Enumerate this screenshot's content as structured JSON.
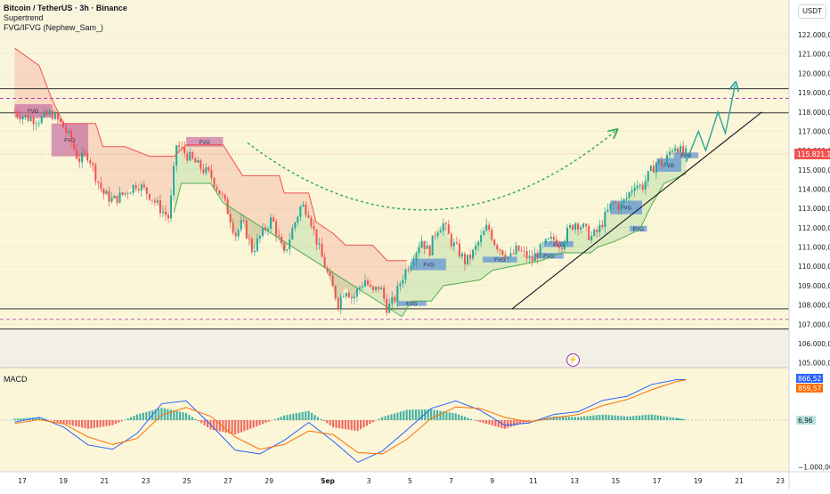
{
  "header": {
    "symbol": "Bitcoin / TetherUS · 3h · Binance",
    "indicator1": "Supertrend",
    "indicator2": "FVG/IFVG (Nephew_Sam_)",
    "currency": "USDT"
  },
  "colors": {
    "bg_yellow": "#fbf6d8",
    "up": "#26a69a",
    "down": "#ef5350",
    "fvg_blue": "#5b8fd9",
    "fvg_pink": "#c66fa3",
    "supertrend_up": "#4caf50",
    "supertrend_down": "#ef5350",
    "macd_line": "#2962ff",
    "signal_line": "#ff6d00",
    "arrow_green": "#26a69a",
    "dashed_curve": "#2ea84a"
  },
  "price_axis": {
    "ticks": [
      "122.000,00",
      "121.000,00",
      "120.000,00",
      "119.000,00",
      "118.000,00",
      "117.000,00",
      "116.000,00",
      "115.000,00",
      "114.000,00",
      "113.000,00",
      "112.000,00",
      "111.000,00",
      "110.000,00",
      "109.000,00",
      "108.000,00",
      "107.000,00",
      "106.000,00",
      "105.000,00"
    ],
    "current_price_label": "115.821,14",
    "current_price": 115821.14
  },
  "macd": {
    "label": "MACD",
    "macd_value": "866,52",
    "signal_value": "859,57",
    "hist_value": "6,96",
    "axis_low": "−1.000,00"
  },
  "time_axis": {
    "labels": [
      "17",
      "19",
      "21",
      "23",
      "25",
      "27",
      "29",
      "Sep",
      "3",
      "5",
      "7",
      "9",
      "11",
      "13",
      "15",
      "17",
      "19",
      "21",
      "23"
    ]
  },
  "chart_data": {
    "type": "candlestick",
    "title": "Bitcoin / TetherUS · 3h · Binance",
    "ylim": [
      104800,
      122600
    ],
    "levels": [
      {
        "price": 119200,
        "style": "solid"
      },
      {
        "price": 118700,
        "style": "dashed"
      },
      {
        "price": 117950,
        "style": "solid"
      },
      {
        "price": 107800,
        "style": "solid"
      },
      {
        "price": 107250,
        "style": "dashed"
      },
      {
        "price": 106750,
        "style": "solid"
      }
    ],
    "price_path": [
      [
        16.0,
        118000
      ],
      [
        16.5,
        117700
      ],
      [
        17.0,
        117600
      ],
      [
        17.5,
        117950
      ],
      [
        18.0,
        117200
      ],
      [
        18.3,
        116500
      ],
      [
        18.6,
        115500
      ],
      [
        19.0,
        115800
      ],
      [
        19.3,
        114700
      ],
      [
        19.6,
        113800
      ],
      [
        20.0,
        113400
      ],
      [
        20.5,
        113800
      ],
      [
        21.0,
        114300
      ],
      [
        21.5,
        113700
      ],
      [
        22.0,
        112900
      ],
      [
        22.3,
        112500
      ],
      [
        22.6,
        116300
      ],
      [
        23.0,
        115800
      ],
      [
        23.5,
        115200
      ],
      [
        24.0,
        114700
      ],
      [
        24.5,
        113500
      ],
      [
        24.8,
        112500
      ],
      [
        25.0,
        111600
      ],
      [
        25.3,
        112300
      ],
      [
        25.7,
        110800
      ],
      [
        26.0,
        111500
      ],
      [
        26.5,
        112500
      ],
      [
        26.8,
        111300
      ],
      [
        27.0,
        110600
      ],
      [
        27.3,
        111800
      ],
      [
        27.7,
        113200
      ],
      [
        28.0,
        112800
      ],
      [
        28.3,
        111400
      ],
      [
        28.6,
        110200
      ],
      [
        29.0,
        108800
      ],
      [
        29.2,
        108100
      ],
      [
        29.5,
        108900
      ],
      [
        29.8,
        108300
      ],
      [
        30.0,
        108800
      ],
      [
        30.3,
        109300
      ],
      [
        30.6,
        108600
      ],
      [
        30.9,
        109000
      ],
      [
        31.2,
        107800
      ],
      [
        31.5,
        108300
      ],
      [
        31.8,
        109400
      ],
      [
        32.0,
        109900
      ],
      [
        32.3,
        110600
      ],
      [
        32.6,
        111400
      ],
      [
        32.9,
        110700
      ],
      [
        33.2,
        111900
      ],
      [
        33.5,
        112200
      ],
      [
        33.8,
        111300
      ],
      [
        34.1,
        110800
      ],
      [
        34.4,
        110200
      ],
      [
        34.7,
        110700
      ],
      [
        35.0,
        111400
      ],
      [
        35.3,
        112100
      ],
      [
        35.6,
        111200
      ],
      [
        35.9,
        110800
      ],
      [
        36.2,
        110400
      ],
      [
        36.5,
        110900
      ],
      [
        36.8,
        110600
      ],
      [
        37.1,
        110300
      ],
      [
        37.4,
        110800
      ],
      [
        37.7,
        111200
      ],
      [
        38.0,
        111400
      ],
      [
        38.3,
        111100
      ],
      [
        38.6,
        111900
      ],
      [
        38.9,
        112300
      ],
      [
        39.2,
        112000
      ],
      [
        39.5,
        111500
      ],
      [
        39.8,
        111800
      ],
      [
        40.1,
        112600
      ],
      [
        40.4,
        113300
      ],
      [
        40.7,
        113100
      ],
      [
        41.0,
        113600
      ],
      [
        41.3,
        114300
      ],
      [
        41.6,
        114100
      ],
      [
        41.9,
        114800
      ],
      [
        42.2,
        115400
      ],
      [
        42.5,
        115300
      ],
      [
        42.8,
        116100
      ],
      [
        43.0,
        116300
      ],
      [
        43.2,
        115900
      ],
      [
        43.4,
        115821
      ]
    ],
    "projection_points": [
      [
        43.4,
        115400
      ],
      [
        43.9,
        117000
      ],
      [
        44.2,
        116000
      ],
      [
        44.7,
        118000
      ],
      [
        45.0,
        116900
      ],
      [
        45.4,
        119400
      ]
    ],
    "trendline": [
      [
        36.3,
        107800
      ],
      [
        46.5,
        118000
      ]
    ],
    "curve_control": [
      [
        25.5,
        116400
      ],
      [
        33.0,
        111000
      ],
      [
        40.5,
        117000
      ]
    ],
    "fvg_zones": [
      {
        "x0": 16.0,
        "x1": 17.5,
        "y0": 117700,
        "y1": 118400,
        "color": "pink",
        "label": "FVG"
      },
      {
        "x0": 17.5,
        "x1": 19.0,
        "y0": 115700,
        "y1": 117400,
        "color": "pink",
        "label": "FVG"
      },
      {
        "x0": 23.0,
        "x1": 24.5,
        "y0": 116200,
        "y1": 116700,
        "color": "pink",
        "label": "FVG"
      },
      {
        "x0": 32.2,
        "x1": 33.6,
        "y0": 109800,
        "y1": 110400,
        "color": "blue",
        "label": "FVG"
      },
      {
        "x0": 31.6,
        "x1": 32.8,
        "y0": 107950,
        "y1": 108200,
        "color": "blue",
        "label": "FVG"
      },
      {
        "x0": 35.1,
        "x1": 36.5,
        "y0": 110200,
        "y1": 110500,
        "color": "blue",
        "label": "FVG"
      },
      {
        "x0": 37.2,
        "x1": 38.4,
        "y0": 110400,
        "y1": 110700,
        "color": "blue",
        "label": "FVG"
      },
      {
        "x0": 37.6,
        "x1": 38.8,
        "y0": 111000,
        "y1": 111300,
        "color": "blue",
        "label": "FVG"
      },
      {
        "x0": 40.3,
        "x1": 41.6,
        "y0": 112700,
        "y1": 113400,
        "color": "blue",
        "label": "FVG"
      },
      {
        "x0": 41.1,
        "x1": 41.8,
        "y0": 111800,
        "y1": 112100,
        "color": "blue",
        "label": "FVG"
      },
      {
        "x0": 42.2,
        "x1": 43.2,
        "y0": 114900,
        "y1": 115600,
        "color": "blue",
        "label": "FVG"
      },
      {
        "x0": 42.9,
        "x1": 43.9,
        "y0": 115600,
        "y1": 115900,
        "color": "blue",
        "label": "FVG"
      }
    ],
    "supertrend_down": [
      [
        16.0,
        121300
      ],
      [
        17.0,
        120400
      ],
      [
        17.5,
        118700
      ],
      [
        18.0,
        117400
      ],
      [
        19.3,
        117400
      ],
      [
        19.6,
        116200
      ],
      [
        20.5,
        116200
      ],
      [
        21.5,
        115700
      ],
      [
        22.5,
        115700
      ],
      [
        23.0,
        116300
      ],
      [
        24.5,
        116300
      ],
      [
        25.3,
        114700
      ],
      [
        26.8,
        114700
      ],
      [
        27.0,
        113800
      ],
      [
        28.0,
        113800
      ],
      [
        28.3,
        112300
      ],
      [
        29.0,
        111700
      ],
      [
        29.5,
        111100
      ],
      [
        30.6,
        111100
      ],
      [
        31.2,
        110300
      ],
      [
        32.0,
        110300
      ]
    ],
    "supertrend_up": [
      [
        22.5,
        112800
      ],
      [
        22.8,
        114300
      ],
      [
        24.0,
        114300
      ],
      [
        24.5,
        113300
      ],
      [
        31.8,
        107400
      ],
      [
        32.2,
        108200
      ],
      [
        33.0,
        108200
      ],
      [
        33.5,
        109000
      ],
      [
        35.0,
        109300
      ],
      [
        35.5,
        109800
      ],
      [
        37.5,
        110300
      ],
      [
        38.3,
        110700
      ],
      [
        39.5,
        110700
      ],
      [
        39.8,
        111000
      ],
      [
        40.5,
        111300
      ],
      [
        41.5,
        111900
      ],
      [
        42.0,
        113200
      ],
      [
        42.5,
        114300
      ],
      [
        43.4,
        114800
      ]
    ],
    "macd_line": [
      [
        16,
        -40
      ],
      [
        17,
        60
      ],
      [
        18,
        -150
      ],
      [
        19,
        -530
      ],
      [
        20,
        -620
      ],
      [
        21,
        -280
      ],
      [
        22,
        350
      ],
      [
        23,
        410
      ],
      [
        24,
        -100
      ],
      [
        25,
        -640
      ],
      [
        26,
        -720
      ],
      [
        27,
        -430
      ],
      [
        28,
        -50
      ],
      [
        29,
        -450
      ],
      [
        30,
        -900
      ],
      [
        31,
        -660
      ],
      [
        32,
        -210
      ],
      [
        33,
        250
      ],
      [
        34,
        410
      ],
      [
        35,
        210
      ],
      [
        36,
        -110
      ],
      [
        37,
        -60
      ],
      [
        38,
        120
      ],
      [
        39,
        180
      ],
      [
        40,
        420
      ],
      [
        41,
        510
      ],
      [
        42,
        760
      ],
      [
        43,
        860
      ],
      [
        43.4,
        866
      ]
    ],
    "signal_line": [
      [
        16,
        -70
      ],
      [
        17,
        10
      ],
      [
        18,
        -80
      ],
      [
        19,
        -360
      ],
      [
        20,
        -520
      ],
      [
        21,
        -390
      ],
      [
        22,
        110
      ],
      [
        23,
        270
      ],
      [
        24,
        80
      ],
      [
        25,
        -360
      ],
      [
        26,
        -620
      ],
      [
        27,
        -520
      ],
      [
        28,
        -230
      ],
      [
        29,
        -310
      ],
      [
        30,
        -690
      ],
      [
        31,
        -720
      ],
      [
        32,
        -410
      ],
      [
        33,
        40
      ],
      [
        34,
        280
      ],
      [
        35,
        250
      ],
      [
        36,
        60
      ],
      [
        37,
        -40
      ],
      [
        38,
        50
      ],
      [
        39,
        120
      ],
      [
        40,
        310
      ],
      [
        41,
        440
      ],
      [
        42,
        650
      ],
      [
        43,
        820
      ],
      [
        43.4,
        859
      ]
    ],
    "macd_ylim": [
      -1100,
      1100
    ]
  }
}
